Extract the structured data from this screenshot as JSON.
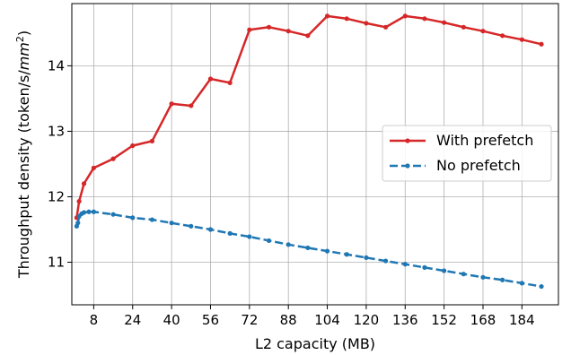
{
  "chart_data": {
    "type": "line",
    "title": "",
    "xlabel": "L2 capacity (MB)",
    "ylabel": "Throughput density (token/s/mm²)",
    "ylabel_prefix": "Throughput density (token/s/",
    "ylabel_unit_base": "mm",
    "ylabel_unit_exp": "2",
    "ylabel_suffix": ")",
    "xlim": [
      -1,
      199
    ],
    "ylim": [
      10.35,
      14.95
    ],
    "xticks": [
      8,
      24,
      40,
      56,
      72,
      88,
      104,
      120,
      136,
      152,
      168,
      184
    ],
    "yticks": [
      11,
      12,
      13,
      14
    ],
    "grid": true,
    "legend": {
      "placement": "center-right"
    },
    "series": [
      {
        "name": "With prefetch",
        "color": "#d62728",
        "linestyle": "solid",
        "marker": "dot",
        "x": [
          1,
          2,
          4,
          8,
          16,
          24,
          32,
          40,
          48,
          56,
          64,
          72,
          80,
          88,
          96,
          104,
          112,
          120,
          128,
          136,
          144,
          152,
          160,
          168,
          176,
          184,
          192
        ],
        "y": [
          11.68,
          11.93,
          12.2,
          12.44,
          12.58,
          12.78,
          12.85,
          13.42,
          13.39,
          13.8,
          13.74,
          14.55,
          14.59,
          14.53,
          14.46,
          14.76,
          14.72,
          14.65,
          14.59,
          14.76,
          14.72,
          14.66,
          14.59,
          14.53,
          14.46,
          14.4,
          14.33
        ]
      },
      {
        "name": "No prefetch",
        "color": "#1f77b4",
        "linestyle": "dashed",
        "marker": "dot",
        "x": [
          1,
          1.5,
          2,
          3,
          4,
          6,
          8,
          16,
          24,
          32,
          40,
          48,
          56,
          64,
          72,
          80,
          88,
          96,
          104,
          112,
          120,
          128,
          136,
          144,
          152,
          160,
          168,
          176,
          184,
          192
        ],
        "y": [
          11.55,
          11.6,
          11.7,
          11.74,
          11.76,
          11.77,
          11.77,
          11.73,
          11.68,
          11.65,
          11.6,
          11.55,
          11.5,
          11.44,
          11.39,
          11.33,
          11.27,
          11.22,
          11.17,
          11.12,
          11.07,
          11.02,
          10.97,
          10.92,
          10.87,
          10.82,
          10.77,
          10.73,
          10.68,
          10.63
        ]
      }
    ]
  }
}
